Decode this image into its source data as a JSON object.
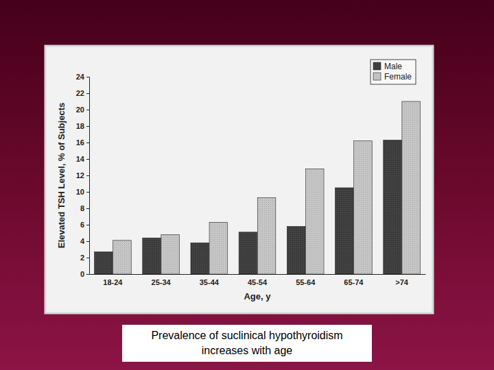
{
  "chart_data": {
    "type": "bar",
    "title": "Prevalence of suclinical hypothyroidism increases with age",
    "x_label": "Age, y",
    "y_label": "Elevated TSH Level, % of Subjects",
    "categories": [
      "18-24",
      "25-34",
      "35-44",
      "45-54",
      "55-64",
      "65-74",
      ">74"
    ],
    "series": [
      {
        "name": "Male",
        "color": "#3c3c3c",
        "values": [
          2.7,
          4.4,
          3.8,
          5.1,
          5.8,
          10.5,
          16.3
        ]
      },
      {
        "name": "Female",
        "color": "#c6c6c6",
        "values": [
          4.1,
          4.8,
          6.3,
          9.3,
          12.8,
          16.2,
          21.0
        ]
      }
    ],
    "ylim": [
      0,
      24
    ],
    "yticks": [
      0,
      2,
      4,
      6,
      8,
      10,
      12,
      14,
      16,
      18,
      20,
      22,
      24
    ],
    "grid": false,
    "legend": "upper right"
  }
}
